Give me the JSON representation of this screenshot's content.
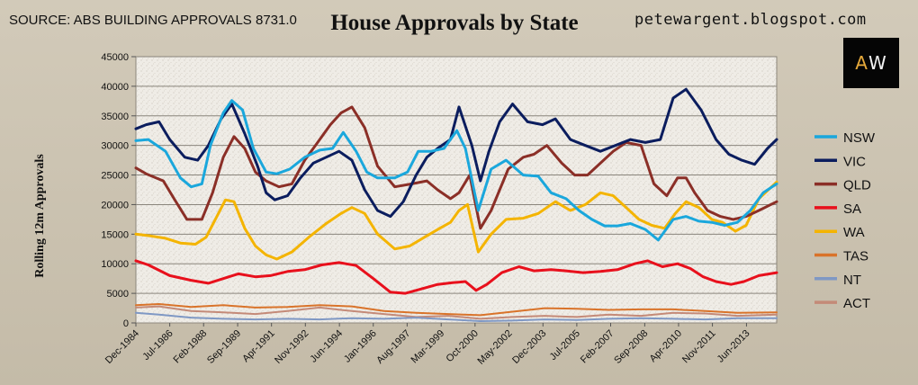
{
  "header": {
    "source": "SOURCE: ABS BUILDING APPROVALS 8731.0",
    "site": "petewargent.blogspot.com",
    "logo_a": "A",
    "logo_w": "W"
  },
  "chart_data": {
    "type": "line",
    "title": "House Approvals by State",
    "xlabel": "",
    "ylabel": "Rolling 12m Approvals",
    "ylim": [
      0,
      45000
    ],
    "yticks": [
      0,
      5000,
      10000,
      15000,
      20000,
      25000,
      30000,
      35000,
      40000,
      45000
    ],
    "xlim": [
      1984.92,
      2014.83
    ],
    "x_tick_labels": [
      "Dec-1984",
      "Jul-1986",
      "Feb-1988",
      "Sep-1989",
      "Apr-1991",
      "Nov-1992",
      "Jun-1994",
      "Jan-1996",
      "Aug-1997",
      "Mar-1999",
      "Oct-2000",
      "May-2002",
      "Dec-2003",
      "Jul-2005",
      "Feb-2007",
      "Sep-2008",
      "Apr-2010",
      "Nov-2011",
      "Jun-2013"
    ],
    "x_tick_positions": [
      1984.92,
      1986.5,
      1988.08,
      1989.67,
      1991.25,
      1992.83,
      1994.42,
      1996.0,
      1997.58,
      1999.17,
      2000.75,
      2002.33,
      2003.92,
      2005.5,
      2007.08,
      2008.67,
      2010.25,
      2011.83,
      2013.42
    ],
    "grid": true,
    "legend": "right",
    "series": [
      {
        "name": "NSW",
        "color": "#1aa7dc",
        "x": [
          1984.92,
          1985.5,
          1986.3,
          1987.0,
          1987.5,
          1988.0,
          1988.4,
          1989.0,
          1989.4,
          1989.9,
          1990.4,
          1991.0,
          1991.5,
          1992.1,
          1992.8,
          1993.5,
          1994.1,
          1994.6,
          1995.2,
          1995.7,
          1996.2,
          1997.0,
          1997.6,
          1998.1,
          1998.7,
          1999.3,
          1999.9,
          2000.3,
          2000.9,
          2001.5,
          2002.2,
          2003.0,
          2003.7,
          2004.3,
          2005.0,
          2005.6,
          2006.2,
          2006.8,
          2007.4,
          2008.0,
          2008.7,
          2009.3,
          2010.0,
          2010.6,
          2011.2,
          2011.8,
          2012.4,
          2013.0,
          2013.6,
          2014.2,
          2014.83
        ],
        "values": [
          30800,
          31000,
          29000,
          24500,
          23000,
          23500,
          30000,
          35500,
          37600,
          36000,
          29500,
          25500,
          25200,
          26000,
          28000,
          29200,
          29500,
          32200,
          29000,
          25500,
          24500,
          24500,
          25500,
          29000,
          29000,
          29500,
          32500,
          29500,
          19000,
          26000,
          27500,
          25000,
          24800,
          22000,
          21000,
          19000,
          17500,
          16400,
          16400,
          16800,
          15800,
          14000,
          17500,
          18000,
          17200,
          17000,
          16500,
          17000,
          19000,
          22000,
          23500
        ]
      },
      {
        "name": "VIC",
        "color": "#0b1d5e",
        "x": [
          1984.92,
          1985.4,
          1986.0,
          1986.5,
          1987.2,
          1987.8,
          1988.3,
          1988.9,
          1989.4,
          1990.0,
          1990.6,
          1991.0,
          1991.4,
          1992.0,
          1992.6,
          1993.2,
          1993.8,
          1994.4,
          1995.0,
          1995.6,
          1996.2,
          1996.8,
          1997.4,
          1998.0,
          1998.5,
          1999.0,
          1999.6,
          2000.0,
          2000.6,
          2001.0,
          2001.4,
          2001.9,
          2002.5,
          2003.2,
          2003.9,
          2004.5,
          2005.2,
          2005.9,
          2006.6,
          2007.3,
          2008.0,
          2008.7,
          2009.4,
          2010.0,
          2010.6,
          2011.3,
          2012.0,
          2012.6,
          2013.2,
          2013.8,
          2014.4,
          2014.83
        ],
        "values": [
          32800,
          33500,
          34000,
          31000,
          28000,
          27500,
          30000,
          34500,
          37000,
          32000,
          26500,
          22000,
          20800,
          21500,
          24500,
          27000,
          28000,
          29000,
          27500,
          22500,
          19000,
          18000,
          20500,
          25000,
          28000,
          29500,
          31000,
          36500,
          30000,
          24000,
          29000,
          34000,
          37000,
          34000,
          33500,
          34500,
          31000,
          30000,
          29000,
          30000,
          31000,
          30500,
          31000,
          38000,
          39500,
          36000,
          31000,
          28500,
          27500,
          26800,
          29500,
          31000
        ]
      },
      {
        "name": "QLD",
        "color": "#8b2f27",
        "x": [
          1984.92,
          1985.4,
          1986.2,
          1986.7,
          1987.3,
          1988.0,
          1988.5,
          1989.0,
          1989.5,
          1990.0,
          1990.5,
          1991.0,
          1991.6,
          1992.2,
          1992.8,
          1993.4,
          1994.0,
          1994.5,
          1995.0,
          1995.6,
          1996.2,
          1997.0,
          1997.8,
          1998.5,
          1999.0,
          1999.6,
          2000.0,
          2000.5,
          2001.0,
          2001.5,
          2002.3,
          2003.0,
          2003.5,
          2004.1,
          2004.8,
          2005.4,
          2006.0,
          2006.6,
          2007.2,
          2007.8,
          2008.5,
          2009.1,
          2009.7,
          2010.2,
          2010.6,
          2011.0,
          2011.6,
          2012.2,
          2012.8,
          2013.4,
          2014.0,
          2014.83
        ],
        "values": [
          26200,
          25200,
          24000,
          21000,
          17500,
          17500,
          22000,
          28000,
          31500,
          29500,
          25500,
          24000,
          23000,
          23500,
          27500,
          30500,
          33500,
          35500,
          36500,
          33000,
          26500,
          23000,
          23500,
          24000,
          22500,
          21000,
          22000,
          25000,
          16000,
          19000,
          26000,
          28000,
          28500,
          30000,
          27000,
          25000,
          25000,
          27000,
          29000,
          30500,
          30000,
          23500,
          21500,
          24500,
          24500,
          22000,
          19000,
          18000,
          17500,
          18000,
          19000,
          20500
        ]
      },
      {
        "name": "SA",
        "color": "#e8101c",
        "x": [
          1984.92,
          1985.5,
          1986.5,
          1987.5,
          1988.3,
          1989.0,
          1989.7,
          1990.5,
          1991.2,
          1992.0,
          1992.8,
          1993.6,
          1994.4,
          1995.2,
          1996.0,
          1996.8,
          1997.5,
          1998.3,
          1999.0,
          1999.7,
          2000.3,
          2000.8,
          2001.3,
          2002.0,
          2002.8,
          2003.5,
          2004.3,
          2005.0,
          2005.8,
          2006.6,
          2007.4,
          2008.2,
          2008.8,
          2009.5,
          2010.2,
          2010.8,
          2011.4,
          2012.0,
          2012.7,
          2013.3,
          2014.0,
          2014.83
        ],
        "values": [
          10500,
          9800,
          8000,
          7200,
          6700,
          7500,
          8300,
          7800,
          8000,
          8700,
          9000,
          9800,
          10200,
          9700,
          7500,
          5200,
          5000,
          5800,
          6500,
          6800,
          7000,
          5500,
          6500,
          8500,
          9500,
          8800,
          9000,
          8800,
          8500,
          8700,
          9000,
          10000,
          10500,
          9500,
          10000,
          9200,
          7800,
          7000,
          6500,
          7000,
          8000,
          8500
        ]
      },
      {
        "name": "WA",
        "color": "#f4b400",
        "x": [
          1984.92,
          1985.6,
          1986.3,
          1987.0,
          1987.7,
          1988.2,
          1988.7,
          1989.1,
          1989.5,
          1990.0,
          1990.5,
          1991.0,
          1991.5,
          1992.2,
          1993.0,
          1993.8,
          1994.5,
          1995.0,
          1995.6,
          1996.2,
          1997.0,
          1997.7,
          1998.4,
          1999.1,
          1999.6,
          2000.0,
          2000.4,
          2000.9,
          2001.5,
          2002.2,
          2003.0,
          2003.7,
          2004.5,
          2005.2,
          2005.9,
          2006.6,
          2007.2,
          2007.8,
          2008.4,
          2009.0,
          2009.6,
          2010.1,
          2010.6,
          2011.2,
          2011.8,
          2012.3,
          2012.9,
          2013.4,
          2014.0,
          2014.83
        ],
        "values": [
          15000,
          14700,
          14300,
          13500,
          13300,
          14500,
          18000,
          20800,
          20500,
          16000,
          13000,
          11500,
          10800,
          12000,
          14500,
          16800,
          18500,
          19500,
          18500,
          15000,
          12500,
          13000,
          14500,
          16000,
          17000,
          19000,
          20000,
          12000,
          15000,
          17500,
          17700,
          18500,
          20500,
          19000,
          20000,
          22000,
          21500,
          19500,
          17500,
          16500,
          16000,
          18500,
          20500,
          19500,
          17500,
          17000,
          15500,
          16500,
          21000,
          23800
        ]
      },
      {
        "name": "TAS",
        "color": "#d9732a",
        "x": [
          1984.92,
          1986.0,
          1987.5,
          1989.0,
          1990.5,
          1992.0,
          1993.5,
          1995.0,
          1996.5,
          1998.0,
          1999.5,
          2001.0,
          2002.5,
          2004.0,
          2005.5,
          2007.0,
          2008.5,
          2010.0,
          2011.5,
          2013.0,
          2014.83
        ],
        "values": [
          3000,
          3200,
          2700,
          3000,
          2600,
          2700,
          3000,
          2800,
          2000,
          1700,
          1500,
          1300,
          1900,
          2500,
          2400,
          2200,
          2300,
          2300,
          2000,
          1700,
          1800
        ]
      },
      {
        "name": "NT",
        "color": "#7f98c4",
        "x": [
          1984.92,
          1986.0,
          1987.5,
          1989.0,
          1990.5,
          1992.0,
          1993.5,
          1995.0,
          1996.5,
          1998.0,
          1999.5,
          2001.0,
          2002.5,
          2004.0,
          2005.5,
          2007.0,
          2008.5,
          2010.0,
          2011.5,
          2013.0,
          2014.83
        ],
        "values": [
          1700,
          1400,
          900,
          700,
          600,
          700,
          600,
          800,
          700,
          900,
          600,
          300,
          400,
          600,
          500,
          700,
          800,
          700,
          600,
          800,
          800
        ]
      },
      {
        "name": "ACT",
        "color": "#c48a78",
        "x": [
          1984.92,
          1986.0,
          1987.5,
          1989.0,
          1990.5,
          1992.0,
          1993.5,
          1995.0,
          1996.5,
          1998.0,
          1999.5,
          2001.0,
          2002.5,
          2004.0,
          2005.5,
          2007.0,
          2008.5,
          2010.0,
          2011.5,
          2013.0,
          2014.83
        ],
        "values": [
          2600,
          2800,
          2000,
          1800,
          1500,
          2000,
          2600,
          2000,
          1500,
          1000,
          1200,
          700,
          1000,
          1200,
          1000,
          1400,
          1200,
          1700,
          1600,
          1200,
          1400
        ]
      }
    ]
  }
}
